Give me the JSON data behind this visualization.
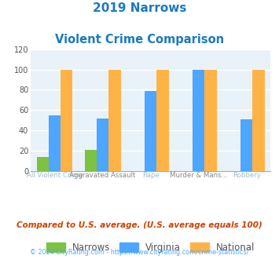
{
  "title_line1": "2019 Narrows",
  "title_line2": "Violent Crime Comparison",
  "title_color": "#1a7abf",
  "tick_labels_top": [
    "",
    "Aggravated Assault",
    "",
    "Murder & Mans...",
    ""
  ],
  "tick_labels_bot": [
    "All Violent Crime",
    "",
    "Rape",
    "",
    "Robbery"
  ],
  "tick_top_color": "#888888",
  "tick_bot_color": "#9bbfd0",
  "narrows": [
    14,
    21,
    0,
    0,
    0
  ],
  "virginia": [
    55,
    52,
    79,
    100,
    51
  ],
  "national": [
    100,
    100,
    100,
    100,
    100
  ],
  "narrows_color": "#7dc242",
  "virginia_color": "#4da6ff",
  "national_color": "#ffb347",
  "ylim": [
    0,
    120
  ],
  "yticks": [
    0,
    20,
    40,
    60,
    80,
    100,
    120
  ],
  "plot_area_color": "#e8f2f8",
  "grid_color": "#ffffff",
  "legend_labels": [
    "Narrows",
    "Virginia",
    "National"
  ],
  "legend_text_color": "#555555",
  "footnote": "Compared to U.S. average. (U.S. average equals 100)",
  "footnote_color": "#cc4400",
  "copyright": "© 2024 CityRating.com - https://www.cityrating.com/crime-statistics/",
  "copyright_color": "#4da6ff",
  "bar_width": 0.25
}
